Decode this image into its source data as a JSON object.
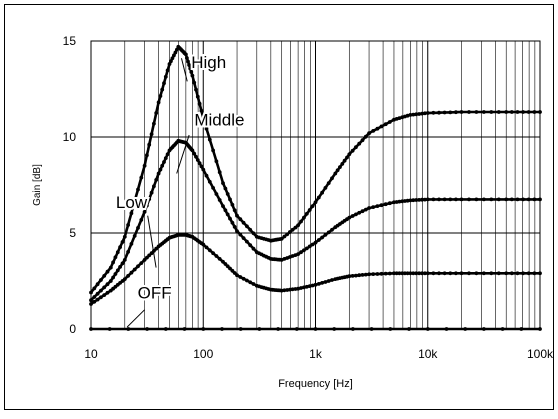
{
  "chart_data": {
    "type": "line",
    "title": "",
    "xlabel": "Frequency [Hz]",
    "ylabel": "Gain [dB]",
    "x_scale": "log",
    "xlim": [
      10,
      100000
    ],
    "ylim": [
      0,
      15
    ],
    "x_ticks": [
      10,
      100,
      1000,
      10000,
      100000
    ],
    "x_tick_labels": [
      "10",
      "100",
      "1k",
      "10k",
      "100k"
    ],
    "y_ticks": [
      0,
      5,
      10,
      15
    ],
    "y_tick_labels": [
      "0",
      "5",
      "10",
      "15"
    ],
    "grid": "vertical log minor + horizontal major",
    "legend": "inline labels with leader lines",
    "line_color": "#000000",
    "series": [
      {
        "name": "High",
        "x": [
          10,
          15,
          20,
          30,
          40,
          50,
          60,
          70,
          80,
          100,
          150,
          200,
          300,
          400,
          500,
          700,
          1000,
          1500,
          2000,
          3000,
          5000,
          7000,
          10000,
          20000,
          50000,
          100000
        ],
        "y": [
          1.9,
          3.2,
          4.8,
          8.5,
          11.8,
          13.8,
          14.7,
          14.3,
          13.2,
          11.0,
          7.6,
          5.9,
          4.8,
          4.6,
          4.7,
          5.4,
          6.6,
          8.1,
          9.1,
          10.2,
          10.9,
          11.15,
          11.25,
          11.3,
          11.3,
          11.3
        ]
      },
      {
        "name": "Middle",
        "x": [
          10,
          15,
          20,
          30,
          40,
          50,
          60,
          70,
          80,
          100,
          150,
          200,
          300,
          400,
          500,
          700,
          1000,
          1500,
          2000,
          3000,
          5000,
          7000,
          10000,
          20000,
          50000,
          100000
        ],
        "y": [
          1.5,
          2.5,
          3.6,
          6.1,
          8.1,
          9.3,
          9.8,
          9.7,
          9.3,
          8.3,
          6.4,
          5.1,
          4.0,
          3.65,
          3.6,
          3.9,
          4.5,
          5.3,
          5.8,
          6.3,
          6.6,
          6.7,
          6.75,
          6.75,
          6.75,
          6.75
        ]
      },
      {
        "name": "Low",
        "x": [
          10,
          15,
          20,
          30,
          40,
          50,
          60,
          70,
          80,
          100,
          150,
          200,
          300,
          400,
          500,
          700,
          1000,
          1500,
          2000,
          3000,
          5000,
          7000,
          10000,
          20000,
          50000,
          100000
        ],
        "y": [
          1.3,
          2.0,
          2.6,
          3.6,
          4.3,
          4.75,
          4.9,
          4.9,
          4.8,
          4.4,
          3.5,
          2.8,
          2.25,
          2.05,
          2.0,
          2.1,
          2.3,
          2.6,
          2.75,
          2.85,
          2.9,
          2.9,
          2.9,
          2.9,
          2.9,
          2.9
        ]
      },
      {
        "name": "OFF",
        "x": [
          10,
          100,
          1000,
          10000,
          100000
        ],
        "y": [
          0,
          0,
          0,
          0,
          0
        ]
      }
    ]
  }
}
